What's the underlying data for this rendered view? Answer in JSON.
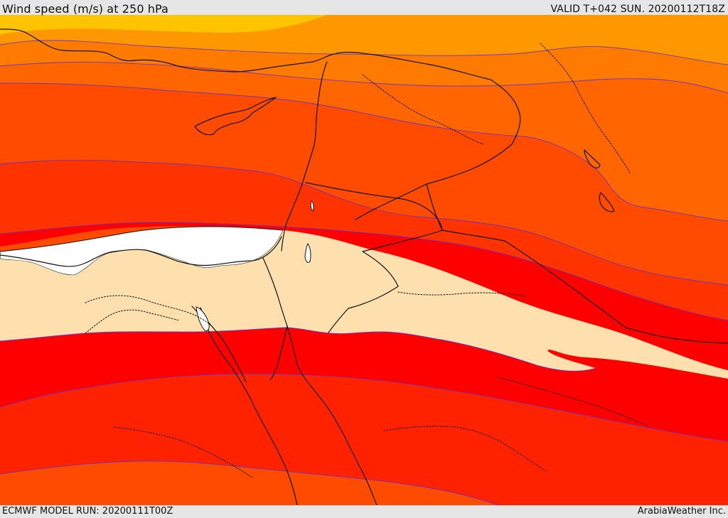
{
  "header": {
    "title": "Wind speed (m/s) at 250 hPa",
    "valid": "VALID T+042 SUN. 20200112T18Z"
  },
  "footer": {
    "model_run": "ECMWF MODEL RUN: 20200111T00Z",
    "brand": "ArabiaWeather Inc."
  },
  "map": {
    "region": "Eastern Mediterranean / Middle East",
    "colors": {
      "band_1": "#ffc400",
      "band_2": "#ff9800",
      "band_3": "#ff7a00",
      "band_4": "#ff5a00",
      "band_5": "#ff3300",
      "band_6": "#ff0000",
      "band_7": "#ff2200",
      "band_8": "#ff4b00",
      "calm_zone": "#fde0ae",
      "white_zone": "#ffffff",
      "contour": "#5c2ed7",
      "coastline": "#111111"
    },
    "icons": {
      "map_surface": "wind-speed-map",
      "coastlines": "coastline-lines",
      "borders": "dotted-border-lines"
    }
  }
}
